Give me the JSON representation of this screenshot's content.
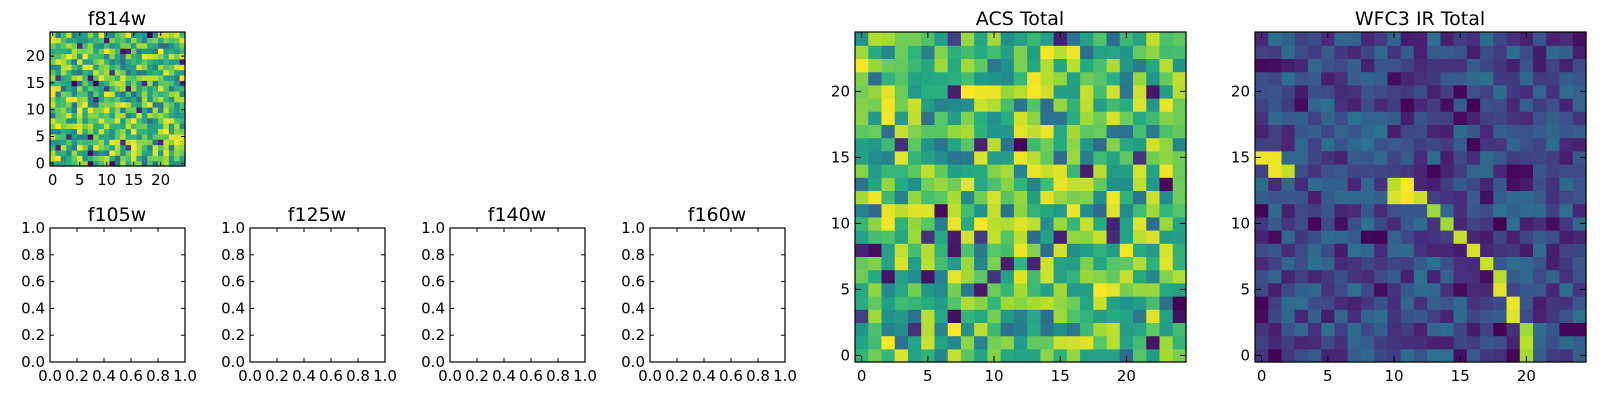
{
  "colormap": "viridis",
  "chart_data": [
    {
      "id": "f814w",
      "type": "heatmap",
      "title": "f814w",
      "grid_size": 25,
      "pattern": "acs",
      "seed": 11,
      "x_ticks": [
        "0",
        "5",
        "10",
        "15",
        "20"
      ],
      "y_ticks": [
        "0",
        "5",
        "10",
        "15",
        "20"
      ],
      "xlim": [
        -0.5,
        24.5
      ],
      "ylim": [
        -0.5,
        24.5
      ]
    },
    {
      "id": "f105w",
      "type": "empty",
      "title": "f105w",
      "x_ticks": [
        "0.0",
        "0.2",
        "0.4",
        "0.6",
        "0.8",
        "1.0"
      ],
      "y_ticks": [
        "0.0",
        "0.2",
        "0.4",
        "0.6",
        "0.8",
        "1.0"
      ],
      "xlim": [
        0,
        1
      ],
      "ylim": [
        0,
        1
      ]
    },
    {
      "id": "f125w",
      "type": "empty",
      "title": "f125w",
      "x_ticks": [
        "0.0",
        "0.2",
        "0.4",
        "0.6",
        "0.8",
        "1.0"
      ],
      "y_ticks": [
        "0.0",
        "0.2",
        "0.4",
        "0.6",
        "0.8",
        "1.0"
      ],
      "xlim": [
        0,
        1
      ],
      "ylim": [
        0,
        1
      ]
    },
    {
      "id": "f140w",
      "type": "empty",
      "title": "f140w",
      "x_ticks": [
        "0.0",
        "0.2",
        "0.4",
        "0.6",
        "0.8",
        "1.0"
      ],
      "y_ticks": [
        "0.0",
        "0.2",
        "0.4",
        "0.6",
        "0.8",
        "1.0"
      ],
      "xlim": [
        0,
        1
      ],
      "ylim": [
        0,
        1
      ]
    },
    {
      "id": "f160w",
      "type": "empty",
      "title": "f160w",
      "x_ticks": [
        "0.0",
        "0.2",
        "0.4",
        "0.6",
        "0.8",
        "1.0"
      ],
      "y_ticks": [
        "0.0",
        "0.2",
        "0.4",
        "0.6",
        "0.8",
        "1.0"
      ],
      "xlim": [
        0,
        1
      ],
      "ylim": [
        0,
        1
      ]
    },
    {
      "id": "acs_total",
      "type": "heatmap",
      "title": "ACS Total",
      "grid_size": 25,
      "pattern": "acs",
      "seed": 23,
      "x_ticks": [
        "0",
        "5",
        "10",
        "15",
        "20"
      ],
      "y_ticks": [
        "0",
        "5",
        "10",
        "15",
        "20"
      ],
      "xlim": [
        -0.5,
        24.5
      ],
      "ylim": [
        -0.5,
        24.5
      ]
    },
    {
      "id": "wfc3_ir_total",
      "type": "heatmap",
      "title": "WFC3 IR Total",
      "grid_size": 25,
      "pattern": "ir",
      "seed": 37,
      "x_ticks": [
        "0",
        "5",
        "10",
        "15",
        "20"
      ],
      "y_ticks": [
        "0",
        "5",
        "10",
        "15",
        "20"
      ],
      "xlim": [
        -0.5,
        24.5
      ],
      "ylim": [
        -0.5,
        24.5
      ],
      "bright_trail": [
        [
          0,
          15
        ],
        [
          1,
          15
        ],
        [
          1,
          14
        ],
        [
          2,
          14
        ],
        [
          10,
          13
        ],
        [
          11,
          13
        ],
        [
          10,
          12
        ],
        [
          11,
          12
        ],
        [
          12,
          12
        ],
        [
          13,
          11
        ],
        [
          14,
          10
        ],
        [
          15,
          9
        ],
        [
          16,
          8
        ],
        [
          17,
          7
        ],
        [
          18,
          6
        ],
        [
          18,
          5
        ],
        [
          19,
          4
        ],
        [
          19,
          3
        ],
        [
          20,
          2
        ],
        [
          20,
          1
        ],
        [
          20,
          0
        ]
      ]
    }
  ]
}
